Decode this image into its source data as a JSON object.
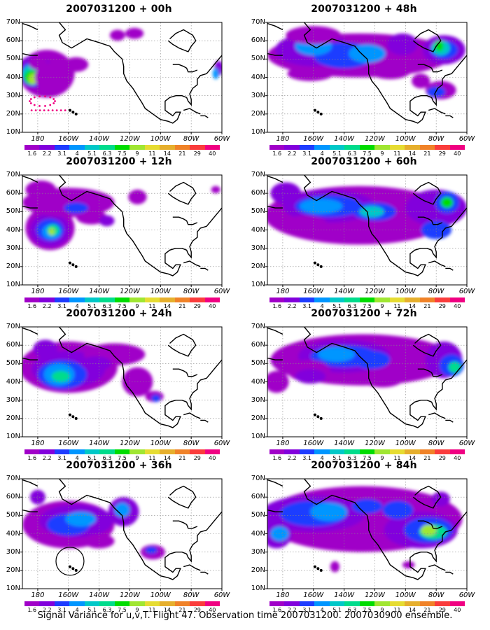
{
  "panels": [
    {
      "title": "2007031200 + 00h",
      "type": "p00"
    },
    {
      "title": "2007031200 + 48h",
      "type": "p48"
    },
    {
      "title": "2007031200 + 12h",
      "type": "p12"
    },
    {
      "title": "2007031200 + 60h",
      "type": "p60"
    },
    {
      "title": "2007031200 + 24h",
      "type": "p24"
    },
    {
      "title": "2007031200 + 72h",
      "type": "p72"
    },
    {
      "title": "2007031200 + 36h",
      "type": "p36"
    },
    {
      "title": "2007031200 + 84h",
      "type": "p84"
    }
  ],
  "lat_labels": [
    "70N",
    "60N",
    "50N",
    "40N",
    "30N",
    "20N",
    "10N"
  ],
  "lon_labels": [
    "180",
    "160W",
    "140W",
    "120W",
    "100W",
    "80W",
    "60W"
  ],
  "colorbar": {
    "labels": [
      "1.6",
      "2.2",
      "3.1",
      "4",
      "5.1",
      "6.3",
      "7.5",
      "9",
      "11",
      "14",
      "21",
      "29",
      "40"
    ],
    "colors": [
      "#a000c8",
      "#8200dc",
      "#1e3cff",
      "#0096ff",
      "#00c8c8",
      "#00dc8c",
      "#00dc00",
      "#a0e632",
      "#e6dc32",
      "#e6af2d",
      "#f08228",
      "#fa3c3c",
      "#f00082"
    ]
  },
  "footer": "Signal Variance for u,v,T. Flight 47. Observation time 2007031200. 2007030900 ensemble."
}
